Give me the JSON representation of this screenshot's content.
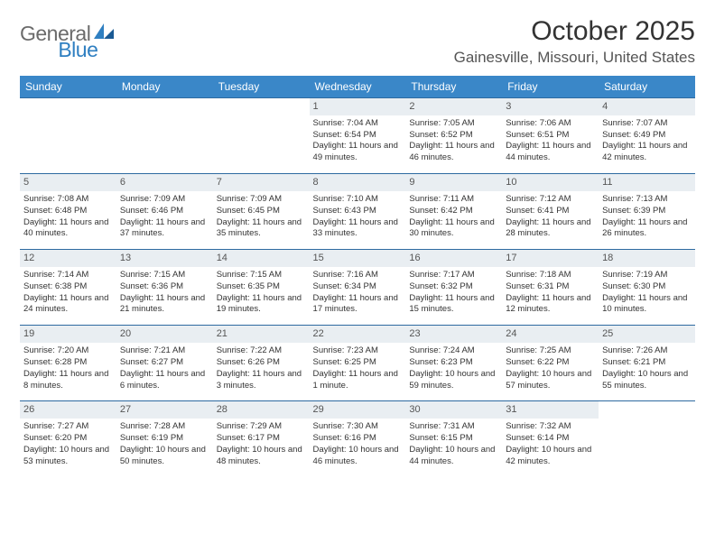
{
  "brand": {
    "general": "General",
    "blue": "Blue"
  },
  "title": "October 2025",
  "location": "Gainesville, Missouri, United States",
  "colors": {
    "header_bg": "#3a87c8",
    "header_text": "#ffffff",
    "cell_border": "#2d6aa0",
    "daynum_bg": "#e9eef2",
    "logo_gray": "#6b6b6b",
    "logo_blue": "#2f7fc1"
  },
  "day_names": [
    "Sunday",
    "Monday",
    "Tuesday",
    "Wednesday",
    "Thursday",
    "Friday",
    "Saturday"
  ],
  "weeks": [
    [
      {
        "n": "",
        "lines": []
      },
      {
        "n": "",
        "lines": []
      },
      {
        "n": "",
        "lines": []
      },
      {
        "n": "1",
        "lines": [
          "Sunrise: 7:04 AM",
          "Sunset: 6:54 PM",
          "Daylight: 11 hours and 49 minutes."
        ]
      },
      {
        "n": "2",
        "lines": [
          "Sunrise: 7:05 AM",
          "Sunset: 6:52 PM",
          "Daylight: 11 hours and 46 minutes."
        ]
      },
      {
        "n": "3",
        "lines": [
          "Sunrise: 7:06 AM",
          "Sunset: 6:51 PM",
          "Daylight: 11 hours and 44 minutes."
        ]
      },
      {
        "n": "4",
        "lines": [
          "Sunrise: 7:07 AM",
          "Sunset: 6:49 PM",
          "Daylight: 11 hours and 42 minutes."
        ]
      }
    ],
    [
      {
        "n": "5",
        "lines": [
          "Sunrise: 7:08 AM",
          "Sunset: 6:48 PM",
          "Daylight: 11 hours and 40 minutes."
        ]
      },
      {
        "n": "6",
        "lines": [
          "Sunrise: 7:09 AM",
          "Sunset: 6:46 PM",
          "Daylight: 11 hours and 37 minutes."
        ]
      },
      {
        "n": "7",
        "lines": [
          "Sunrise: 7:09 AM",
          "Sunset: 6:45 PM",
          "Daylight: 11 hours and 35 minutes."
        ]
      },
      {
        "n": "8",
        "lines": [
          "Sunrise: 7:10 AM",
          "Sunset: 6:43 PM",
          "Daylight: 11 hours and 33 minutes."
        ]
      },
      {
        "n": "9",
        "lines": [
          "Sunrise: 7:11 AM",
          "Sunset: 6:42 PM",
          "Daylight: 11 hours and 30 minutes."
        ]
      },
      {
        "n": "10",
        "lines": [
          "Sunrise: 7:12 AM",
          "Sunset: 6:41 PM",
          "Daylight: 11 hours and 28 minutes."
        ]
      },
      {
        "n": "11",
        "lines": [
          "Sunrise: 7:13 AM",
          "Sunset: 6:39 PM",
          "Daylight: 11 hours and 26 minutes."
        ]
      }
    ],
    [
      {
        "n": "12",
        "lines": [
          "Sunrise: 7:14 AM",
          "Sunset: 6:38 PM",
          "Daylight: 11 hours and 24 minutes."
        ]
      },
      {
        "n": "13",
        "lines": [
          "Sunrise: 7:15 AM",
          "Sunset: 6:36 PM",
          "Daylight: 11 hours and 21 minutes."
        ]
      },
      {
        "n": "14",
        "lines": [
          "Sunrise: 7:15 AM",
          "Sunset: 6:35 PM",
          "Daylight: 11 hours and 19 minutes."
        ]
      },
      {
        "n": "15",
        "lines": [
          "Sunrise: 7:16 AM",
          "Sunset: 6:34 PM",
          "Daylight: 11 hours and 17 minutes."
        ]
      },
      {
        "n": "16",
        "lines": [
          "Sunrise: 7:17 AM",
          "Sunset: 6:32 PM",
          "Daylight: 11 hours and 15 minutes."
        ]
      },
      {
        "n": "17",
        "lines": [
          "Sunrise: 7:18 AM",
          "Sunset: 6:31 PM",
          "Daylight: 11 hours and 12 minutes."
        ]
      },
      {
        "n": "18",
        "lines": [
          "Sunrise: 7:19 AM",
          "Sunset: 6:30 PM",
          "Daylight: 11 hours and 10 minutes."
        ]
      }
    ],
    [
      {
        "n": "19",
        "lines": [
          "Sunrise: 7:20 AM",
          "Sunset: 6:28 PM",
          "Daylight: 11 hours and 8 minutes."
        ]
      },
      {
        "n": "20",
        "lines": [
          "Sunrise: 7:21 AM",
          "Sunset: 6:27 PM",
          "Daylight: 11 hours and 6 minutes."
        ]
      },
      {
        "n": "21",
        "lines": [
          "Sunrise: 7:22 AM",
          "Sunset: 6:26 PM",
          "Daylight: 11 hours and 3 minutes."
        ]
      },
      {
        "n": "22",
        "lines": [
          "Sunrise: 7:23 AM",
          "Sunset: 6:25 PM",
          "Daylight: 11 hours and 1 minute."
        ]
      },
      {
        "n": "23",
        "lines": [
          "Sunrise: 7:24 AM",
          "Sunset: 6:23 PM",
          "Daylight: 10 hours and 59 minutes."
        ]
      },
      {
        "n": "24",
        "lines": [
          "Sunrise: 7:25 AM",
          "Sunset: 6:22 PM",
          "Daylight: 10 hours and 57 minutes."
        ]
      },
      {
        "n": "25",
        "lines": [
          "Sunrise: 7:26 AM",
          "Sunset: 6:21 PM",
          "Daylight: 10 hours and 55 minutes."
        ]
      }
    ],
    [
      {
        "n": "26",
        "lines": [
          "Sunrise: 7:27 AM",
          "Sunset: 6:20 PM",
          "Daylight: 10 hours and 53 minutes."
        ]
      },
      {
        "n": "27",
        "lines": [
          "Sunrise: 7:28 AM",
          "Sunset: 6:19 PM",
          "Daylight: 10 hours and 50 minutes."
        ]
      },
      {
        "n": "28",
        "lines": [
          "Sunrise: 7:29 AM",
          "Sunset: 6:17 PM",
          "Daylight: 10 hours and 48 minutes."
        ]
      },
      {
        "n": "29",
        "lines": [
          "Sunrise: 7:30 AM",
          "Sunset: 6:16 PM",
          "Daylight: 10 hours and 46 minutes."
        ]
      },
      {
        "n": "30",
        "lines": [
          "Sunrise: 7:31 AM",
          "Sunset: 6:15 PM",
          "Daylight: 10 hours and 44 minutes."
        ]
      },
      {
        "n": "31",
        "lines": [
          "Sunrise: 7:32 AM",
          "Sunset: 6:14 PM",
          "Daylight: 10 hours and 42 minutes."
        ]
      },
      {
        "n": "",
        "lines": []
      }
    ]
  ]
}
